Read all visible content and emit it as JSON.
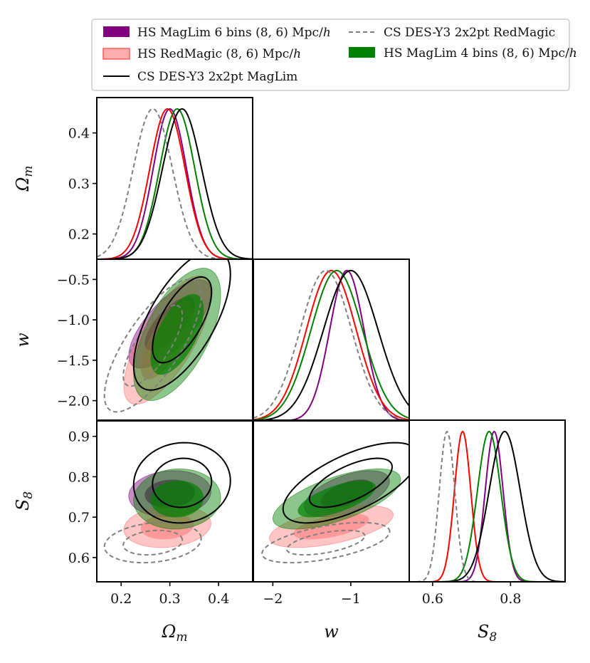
{
  "chart_data": {
    "type": "corner",
    "title": "",
    "parameters": [
      {
        "key": "om",
        "label_base": "Ω",
        "label_sub": "m",
        "range": [
          0.15,
          0.47
        ],
        "ticks": [
          0.2,
          0.3,
          0.4
        ],
        "tick_labels": [
          "0.2",
          "0.3",
          "0.4"
        ]
      },
      {
        "key": "w",
        "label_base": "w",
        "label_sub": "",
        "range": [
          -2.25,
          -0.25
        ],
        "ticks": [
          -2.0,
          -1.5,
          -1.0,
          -0.5
        ],
        "tick_labels": [
          "−2.0",
          "−1.5",
          "−1.0",
          "−0.5"
        ],
        "xticks": [
          -2,
          -1
        ],
        "xtick_labels": [
          "−2",
          "−1"
        ]
      },
      {
        "key": "s8",
        "label_base": "S",
        "label_sub": "8",
        "range": [
          0.54,
          0.94
        ],
        "ticks": [
          0.6,
          0.7,
          0.8,
          0.9
        ],
        "tick_labels": [
          "0.6",
          "0.7",
          "0.8",
          "0.9"
        ],
        "xticks": [
          0.6,
          0.8
        ],
        "xtick_labels": [
          "0.6",
          "0.8"
        ]
      }
    ],
    "legend": {
      "position": "top",
      "entries": [
        {
          "name": "HS MagLim 6 bins (8, 6) Mpc/",
          "italic_suffix": "h",
          "style": "filled",
          "color": "#800080"
        },
        {
          "name": "CS DES-Y3 2x2pt RedMagic",
          "italic_suffix": "",
          "style": "dashed",
          "color": "#808080"
        },
        {
          "name": "HS RedMagic (8, 6) Mpc/",
          "italic_suffix": "h",
          "style": "filled",
          "color": "#ff6b6b"
        },
        {
          "name": "HS MagLim 4 bins (8, 6) Mpc/",
          "italic_suffix": "h",
          "style": "filled",
          "color": "#008000"
        },
        {
          "name": "CS DES-Y3 2x2pt MagLim",
          "italic_suffix": "",
          "style": "solid",
          "color": "#000000"
        }
      ]
    },
    "series": [
      {
        "name": "HS MagLim 6 bins (8, 6) Mpc/h",
        "kind": "filled",
        "color": "#800080",
        "mean": {
          "om": 0.3,
          "w": -1.05,
          "s8": 0.758
        },
        "sigma": {
          "om": 0.034,
          "w": 0.22,
          "s8": 0.023
        },
        "rho": {
          "om_w": 0.72,
          "om_s8": 0.1,
          "w_s8": 0.55
        }
      },
      {
        "name": "HS RedMagic (8, 6) Mpc/h",
        "kind": "filled",
        "color": "#ff6b6b",
        "mean": {
          "om": 0.295,
          "w": -1.25,
          "s8": 0.677
        },
        "sigma": {
          "om": 0.036,
          "w": 0.32,
          "s8": 0.021
        },
        "rho": {
          "om_w": 0.72,
          "om_s8": 0.15,
          "w_s8": 0.55
        }
      },
      {
        "name": "HS MagLim 4 bins (8, 6) Mpc/h",
        "kind": "filled",
        "color": "#008000",
        "mean": {
          "om": 0.315,
          "w": -1.18,
          "s8": 0.745
        },
        "sigma": {
          "om": 0.036,
          "w": 0.33,
          "s8": 0.03
        },
        "rho": {
          "om_w": 0.6,
          "om_s8": 0.05,
          "w_s8": 0.65
        }
      },
      {
        "name": "CS DES-Y3 2x2pt RedMagic",
        "kind": "dashed",
        "color": "#808080",
        "mean": {
          "om": 0.265,
          "w": -1.32,
          "s8": 0.637
        },
        "sigma": {
          "om": 0.04,
          "w": 0.33,
          "s8": 0.02
        },
        "rho": {
          "om_w": 0.75,
          "om_s8": 0.2,
          "w_s8": 0.55
        }
      },
      {
        "name": "CS DES-Y3 2x2pt MagLim",
        "kind": "solid",
        "color": "#000000",
        "mean": {
          "om": 0.325,
          "w": -1.0,
          "s8": 0.785
        },
        "sigma": {
          "om": 0.04,
          "w": 0.35,
          "s8": 0.04
        },
        "rho": {
          "om_w": 0.65,
          "om_s8": 0.05,
          "w_s8": 0.65
        }
      }
    ]
  }
}
